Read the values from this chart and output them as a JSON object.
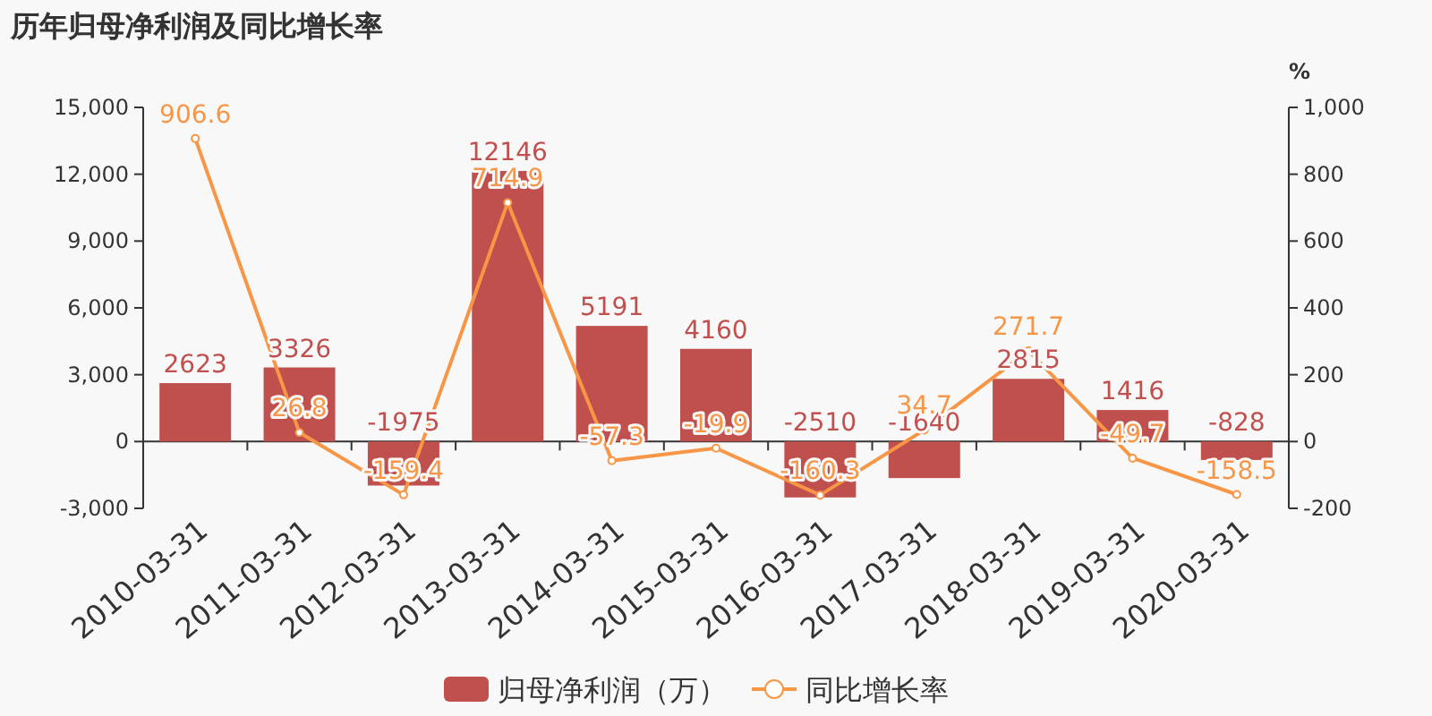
{
  "chart_data": {
    "type": "bar",
    "title": "历年归母净利润及同比增长率",
    "y2label": "%",
    "categories": [
      "2010-03-31",
      "2011-03-31",
      "2012-03-31",
      "2013-03-31",
      "2014-03-31",
      "2015-03-31",
      "2016-03-31",
      "2017-03-31",
      "2018-03-31",
      "2019-03-31",
      "2020-03-31"
    ],
    "series": [
      {
        "name": "归母净利润（万）",
        "color": "#c0504d",
        "values": [
          2623,
          3326,
          -1975,
          12146,
          5191,
          4160,
          -2510,
          -1640,
          2815,
          1416,
          -828
        ]
      },
      {
        "name": "同比增长率",
        "type": "line",
        "axis": "y2",
        "color": "#f79646",
        "marker": "circle",
        "values": [
          906.6,
          26.8,
          -159.4,
          714.9,
          -57.3,
          -19.9,
          -160.3,
          34.7,
          271.7,
          -49.7,
          -158.5
        ]
      }
    ],
    "data_labels": true,
    "ylim": [
      -3000,
      15000
    ],
    "yticks": [
      {
        "value": -3000,
        "label": "-3,000"
      },
      0,
      {
        "value": 3000,
        "label": "3,000"
      },
      {
        "value": 6000,
        "label": "6,000"
      },
      {
        "value": 9000,
        "label": "9,000"
      },
      {
        "value": 12000,
        "label": "12,000"
      },
      {
        "value": 15000,
        "label": "15,000"
      }
    ],
    "y2lim": [
      -200,
      1000
    ],
    "y2ticks": [
      -200,
      0,
      200,
      400,
      600,
      800,
      {
        "value": 1000,
        "label": "1,000"
      }
    ],
    "grid": false,
    "legend": "bottom"
  }
}
